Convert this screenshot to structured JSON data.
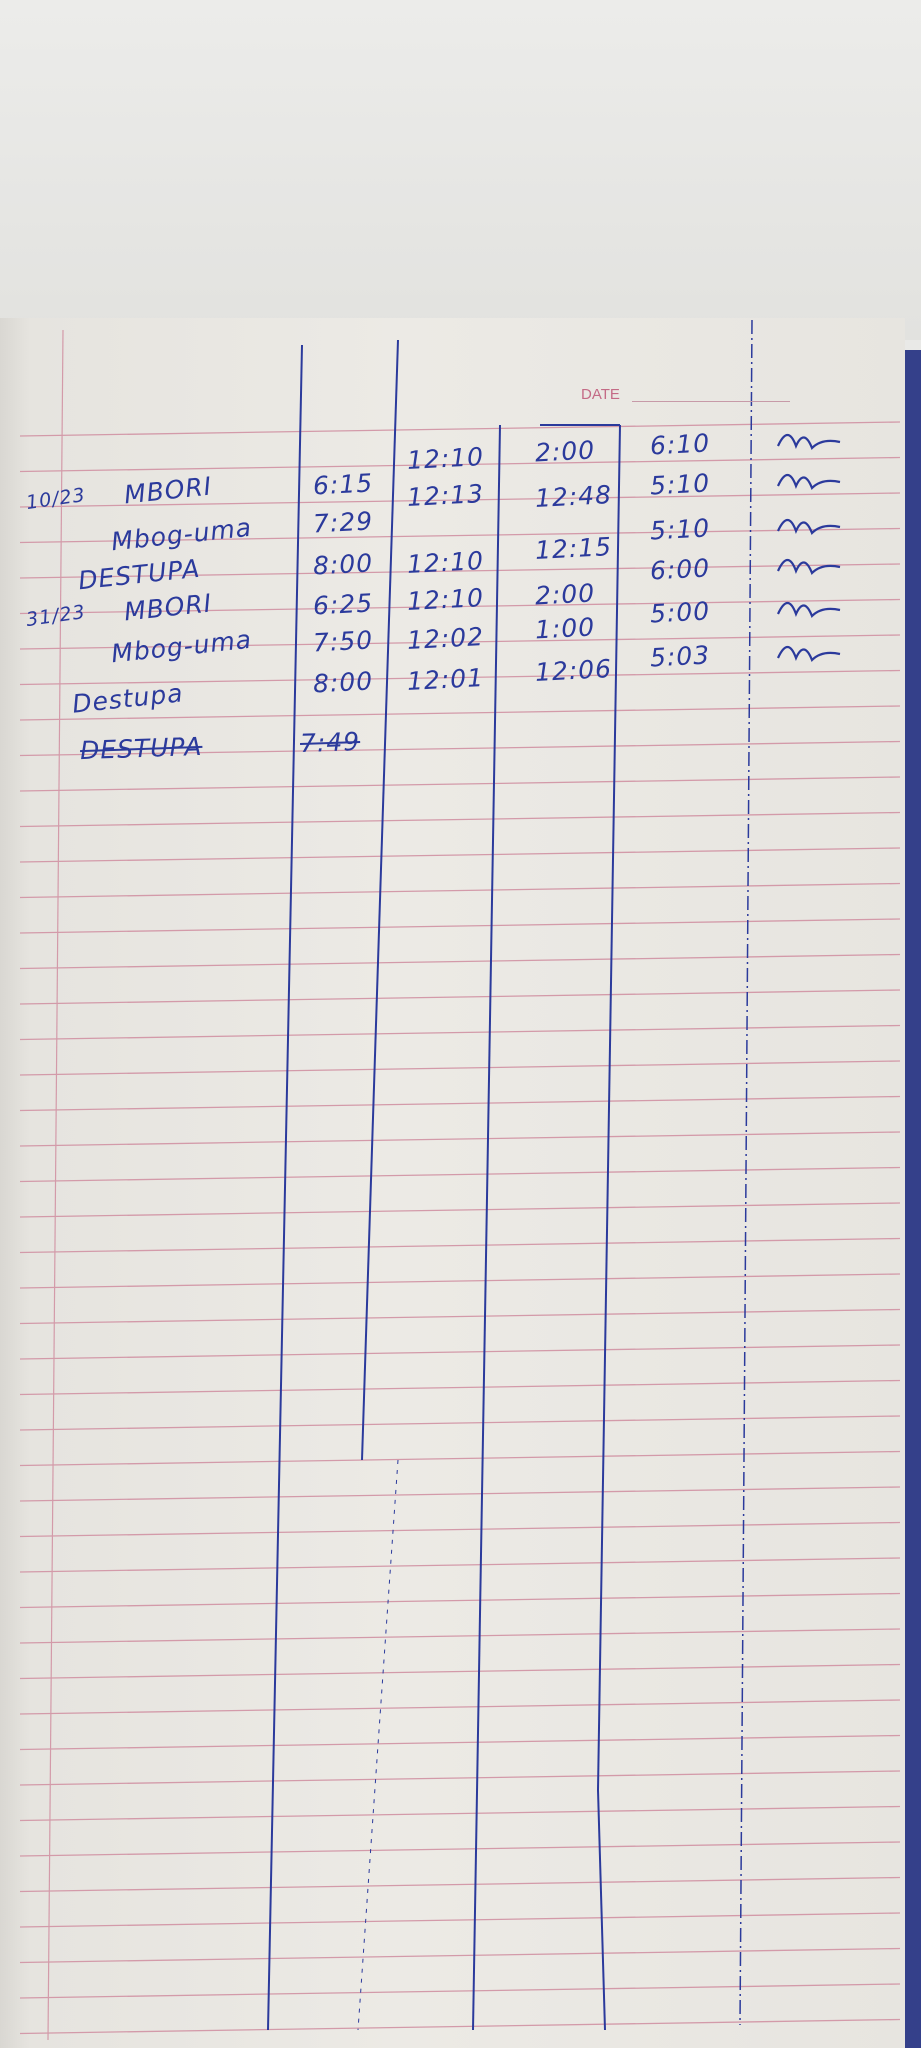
{
  "header": {
    "date_label": "DATE"
  },
  "colors": {
    "ink": "#2b3a9c",
    "rule": "#d39aa9",
    "cover": "#34408a"
  },
  "entries": [
    {
      "date": "10/23",
      "name": "MBORI",
      "times": [
        "6:15",
        "12:10",
        "2:00",
        "6:10"
      ],
      "signed": true
    },
    {
      "date": "",
      "name": "Mbog-uma",
      "times": [
        "7:29",
        "12:13",
        "12:48",
        "5:10"
      ],
      "signed": true
    },
    {
      "date": "",
      "name": "DESTUPA",
      "times": [
        "8:00",
        "12:10",
        "12:15",
        "5:10"
      ],
      "signed": true
    },
    {
      "date": "31/23",
      "name": "MBORI",
      "times": [
        "6:25",
        "12:10",
        "2:00",
        "6:00"
      ],
      "signed": true
    },
    {
      "date": "",
      "name": "Mbog-uma",
      "times": [
        "7:50",
        "12:02",
        "1:00",
        "5:00"
      ],
      "signed": true
    },
    {
      "date": "",
      "name": "Destupa",
      "times": [
        "8:00",
        "12:01",
        "12:06",
        "5:03"
      ],
      "signed": true
    }
  ],
  "struck_entry": {
    "name": "DESTUPA",
    "time": "7:49"
  }
}
